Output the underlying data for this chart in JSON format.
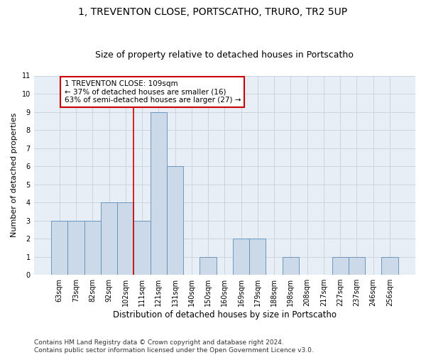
{
  "title": "1, TREVENTON CLOSE, PORTSCATHO, TRURO, TR2 5UP",
  "subtitle": "Size of property relative to detached houses in Portscatho",
  "xlabel": "Distribution of detached houses by size in Portscatho",
  "ylabel": "Number of detached properties",
  "categories": [
    "63sqm",
    "73sqm",
    "82sqm",
    "92sqm",
    "102sqm",
    "111sqm",
    "121sqm",
    "131sqm",
    "140sqm",
    "150sqm",
    "160sqm",
    "169sqm",
    "179sqm",
    "188sqm",
    "198sqm",
    "208sqm",
    "217sqm",
    "227sqm",
    "237sqm",
    "246sqm",
    "256sqm"
  ],
  "values": [
    3,
    3,
    3,
    4,
    4,
    3,
    9,
    6,
    0,
    1,
    0,
    2,
    2,
    0,
    1,
    0,
    0,
    1,
    1,
    0,
    1
  ],
  "bar_color": "#ccd9e8",
  "bar_edge_color": "#5b8db8",
  "highlight_line_color": "#cc0000",
  "annotation_text": "1 TREVENTON CLOSE: 109sqm\n← 37% of detached houses are smaller (16)\n63% of semi-detached houses are larger (27) →",
  "annotation_box_color": "#cc0000",
  "ylim": [
    0,
    11
  ],
  "yticks": [
    0,
    1,
    2,
    3,
    4,
    5,
    6,
    7,
    8,
    9,
    10,
    11
  ],
  "grid_color": "#c8d0dc",
  "background_color": "#e8eef5",
  "footer_text": "Contains HM Land Registry data © Crown copyright and database right 2024.\nContains public sector information licensed under the Open Government Licence v3.0.",
  "title_fontsize": 10,
  "subtitle_fontsize": 9,
  "xlabel_fontsize": 8.5,
  "ylabel_fontsize": 8,
  "tick_fontsize": 7,
  "annotation_fontsize": 7.5,
  "footer_fontsize": 6.5
}
